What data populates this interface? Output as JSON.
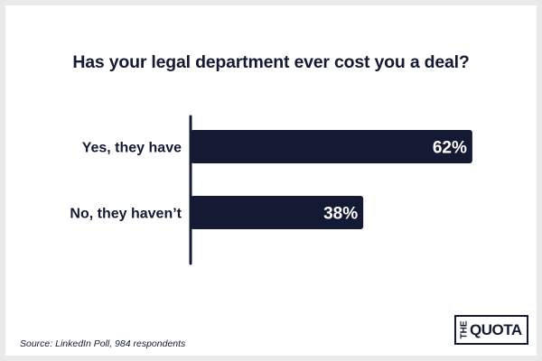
{
  "chart_data": {
    "type": "bar",
    "orientation": "horizontal",
    "title": "Has your legal department ever cost you a deal?",
    "categories": [
      "Yes, they have",
      "No, they haven’t"
    ],
    "values": [
      62,
      38
    ],
    "value_labels": [
      "62%",
      "38%"
    ],
    "xlim": [
      0,
      100
    ],
    "xlabel": "",
    "ylabel": "",
    "grid": false,
    "bar_color": "#141a33"
  },
  "footer": {
    "source": "Source: LinkedIn Poll, 984 respondents"
  },
  "logo": {
    "the": "THE",
    "quota": "QUOTA"
  },
  "colors": {
    "bar": "#141a33",
    "text": "#141a33",
    "background": "#ffffff",
    "border": "#e9e9e9"
  }
}
